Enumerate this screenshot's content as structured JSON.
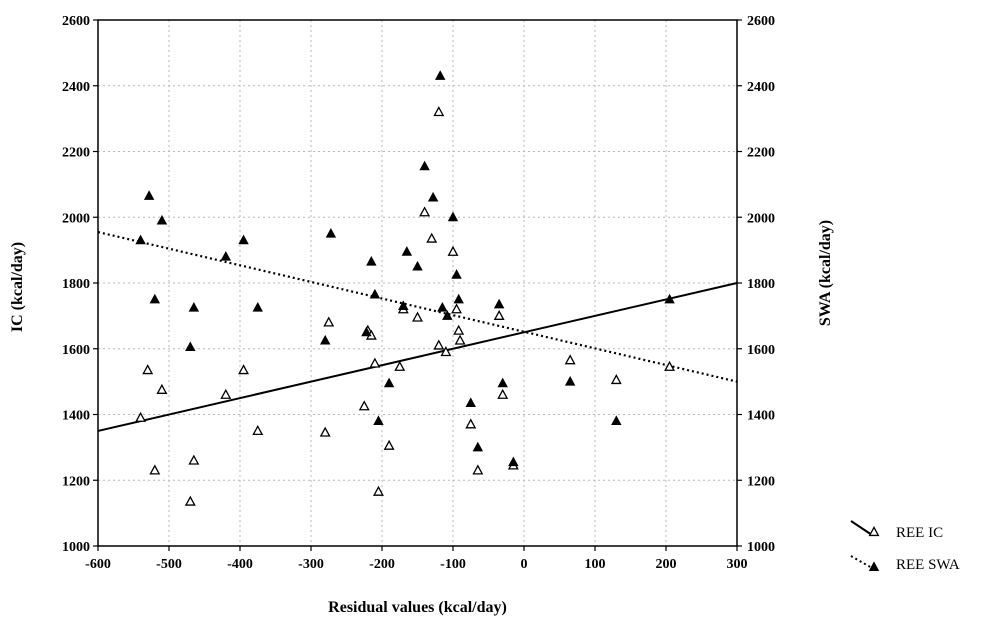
{
  "chart_data": {
    "type": "scatter",
    "title": "",
    "xlabel": "Residual values (kcal/day)",
    "ylabel": "IC (kcal/day)",
    "y2label": "SWA (kcal/day)",
    "xlim": [
      -600,
      300
    ],
    "ylim": [
      1000,
      2600
    ],
    "y2lim": [
      1000,
      2600
    ],
    "x_ticks": [
      -600,
      -500,
      -400,
      -300,
      -200,
      -100,
      0,
      100,
      200,
      300
    ],
    "y_ticks": [
      1000,
      1200,
      1400,
      1600,
      1800,
      2000,
      2200,
      2400,
      2600
    ],
    "grid": true,
    "legend_position": "right",
    "series": [
      {
        "name": "REE IC",
        "marker": "open-triangle",
        "line_style": "solid",
        "regression": {
          "x": [
            -600,
            300
          ],
          "y": [
            1350,
            1800
          ]
        },
        "points": [
          [
            -540,
            1390
          ],
          [
            -530,
            1535
          ],
          [
            -520,
            1230
          ],
          [
            -510,
            1475
          ],
          [
            -470,
            1135
          ],
          [
            -465,
            1260
          ],
          [
            -420,
            1460
          ],
          [
            -395,
            1535
          ],
          [
            -375,
            1350
          ],
          [
            -280,
            1345
          ],
          [
            -275,
            1680
          ],
          [
            -225,
            1425
          ],
          [
            -220,
            1655
          ],
          [
            -215,
            1640
          ],
          [
            -210,
            1555
          ],
          [
            -205,
            1165
          ],
          [
            -190,
            1305
          ],
          [
            -175,
            1545
          ],
          [
            -170,
            1720
          ],
          [
            -150,
            1695
          ],
          [
            -140,
            2015
          ],
          [
            -130,
            1935
          ],
          [
            -120,
            2320
          ],
          [
            -120,
            1610
          ],
          [
            -110,
            1590
          ],
          [
            -100,
            1895
          ],
          [
            -95,
            1720
          ],
          [
            -92,
            1655
          ],
          [
            -90,
            1625
          ],
          [
            -75,
            1370
          ],
          [
            -65,
            1230
          ],
          [
            -35,
            1700
          ],
          [
            -30,
            1460
          ],
          [
            -15,
            1245
          ],
          [
            65,
            1565
          ],
          [
            130,
            1505
          ],
          [
            205,
            1545
          ]
        ]
      },
      {
        "name": "REE SWA",
        "marker": "filled-triangle",
        "line_style": "dotted",
        "regression": {
          "x": [
            -600,
            300
          ],
          "y": [
            1955,
            1500
          ]
        },
        "points": [
          [
            -540,
            1930
          ],
          [
            -528,
            2065
          ],
          [
            -520,
            1750
          ],
          [
            -510,
            1990
          ],
          [
            -470,
            1605
          ],
          [
            -465,
            1725
          ],
          [
            -420,
            1880
          ],
          [
            -395,
            1930
          ],
          [
            -375,
            1725
          ],
          [
            -280,
            1625
          ],
          [
            -272,
            1950
          ],
          [
            -222,
            1650
          ],
          [
            -215,
            1865
          ],
          [
            -210,
            1765
          ],
          [
            -205,
            1380
          ],
          [
            -190,
            1495
          ],
          [
            -170,
            1730
          ],
          [
            -165,
            1895
          ],
          [
            -150,
            1850
          ],
          [
            -140,
            2155
          ],
          [
            -128,
            2060
          ],
          [
            -118,
            2430
          ],
          [
            -115,
            1725
          ],
          [
            -108,
            1700
          ],
          [
            -100,
            2000
          ],
          [
            -95,
            1825
          ],
          [
            -92,
            1750
          ],
          [
            -75,
            1435
          ],
          [
            -65,
            1300
          ],
          [
            -35,
            1735
          ],
          [
            -30,
            1495
          ],
          [
            -15,
            1255
          ],
          [
            65,
            1500
          ],
          [
            130,
            1380
          ],
          [
            205,
            1750
          ]
        ]
      }
    ]
  }
}
